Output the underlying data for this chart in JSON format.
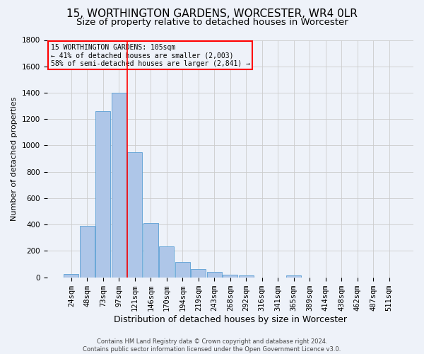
{
  "title": "15, WORTHINGTON GARDENS, WORCESTER, WR4 0LR",
  "subtitle": "Size of property relative to detached houses in Worcester",
  "xlabel": "Distribution of detached houses by size in Worcester",
  "ylabel": "Number of detached properties",
  "footnote1": "Contains HM Land Registry data © Crown copyright and database right 2024.",
  "footnote2": "Contains public sector information licensed under the Open Government Licence v3.0.",
  "categories": [
    "24sqm",
    "48sqm",
    "73sqm",
    "97sqm",
    "121sqm",
    "146sqm",
    "170sqm",
    "194sqm",
    "219sqm",
    "243sqm",
    "268sqm",
    "292sqm",
    "316sqm",
    "341sqm",
    "365sqm",
    "389sqm",
    "414sqm",
    "438sqm",
    "462sqm",
    "487sqm",
    "511sqm"
  ],
  "values": [
    25,
    390,
    1260,
    1400,
    950,
    410,
    235,
    115,
    65,
    40,
    20,
    15,
    0,
    0,
    15,
    0,
    0,
    0,
    0,
    0,
    0
  ],
  "bar_color": "#aec6e8",
  "bar_edge_color": "#5a9fd4",
  "vline_color": "red",
  "vline_pos": 3.5,
  "annotation_text": "15 WORTHINGTON GARDENS: 105sqm\n← 41% of detached houses are smaller (2,003)\n58% of semi-detached houses are larger (2,841) →",
  "annotation_box_color": "red",
  "annotation_text_color": "black",
  "ylim": [
    0,
    1800
  ],
  "yticks": [
    0,
    200,
    400,
    600,
    800,
    1000,
    1200,
    1400,
    1600,
    1800
  ],
  "grid_color": "#cccccc",
  "background_color": "#eef2f9",
  "title_fontsize": 11,
  "subtitle_fontsize": 9.5,
  "xlabel_fontsize": 9,
  "ylabel_fontsize": 8,
  "tick_fontsize": 7.5,
  "footnote_fontsize": 6
}
